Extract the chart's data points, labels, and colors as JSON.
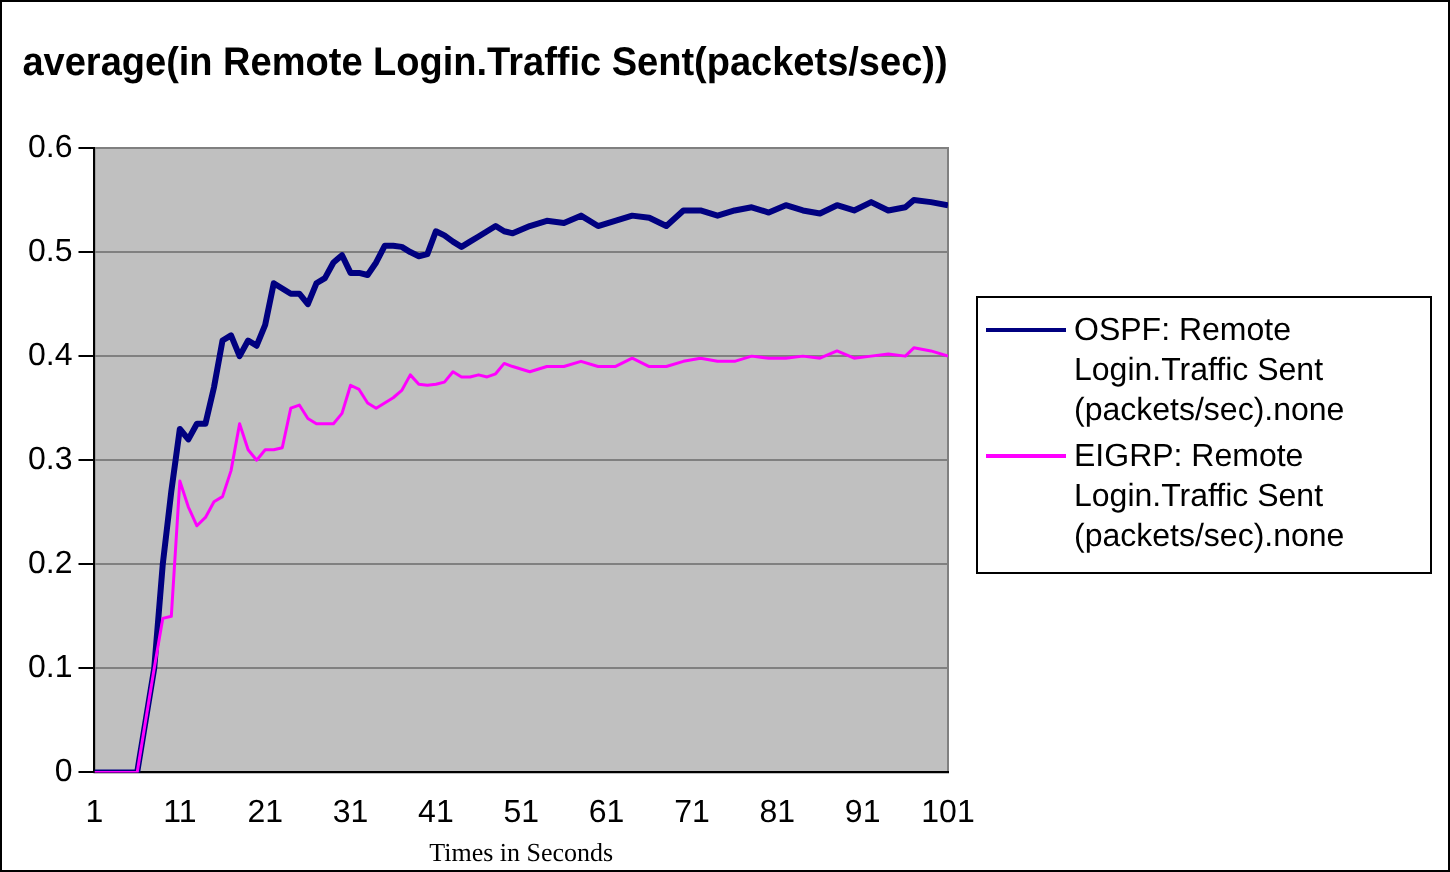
{
  "chart_data": {
    "type": "line",
    "title": "average(in Remote Login.Traffic Sent(packets/sec))",
    "xlabel": "Times in Seconds",
    "xlim": [
      1,
      101
    ],
    "xticks": [
      1,
      11,
      21,
      31,
      41,
      51,
      61,
      71,
      81,
      91,
      101
    ],
    "ylim": [
      0,
      0.6
    ],
    "yticks": [
      0,
      0.1,
      0.2,
      0.3,
      0.4,
      0.5,
      0.6
    ],
    "grid": "y",
    "legend": "right",
    "marker": "none",
    "line_style": "solid",
    "x": [
      1,
      2,
      3,
      4,
      5,
      6,
      7,
      8,
      9,
      10,
      11,
      12,
      13,
      14,
      15,
      16,
      17,
      18,
      19,
      20,
      21,
      22,
      23,
      24,
      25,
      26,
      27,
      28,
      29,
      30,
      31,
      32,
      33,
      34,
      35,
      36,
      37,
      38,
      39,
      40,
      41,
      42,
      43,
      44,
      45,
      46,
      47,
      48,
      49,
      50,
      52,
      54,
      56,
      58,
      60,
      62,
      64,
      66,
      68,
      70,
      72,
      74,
      76,
      78,
      80,
      82,
      84,
      86,
      88,
      90,
      92,
      94,
      96,
      97,
      99,
      101
    ],
    "series": [
      {
        "name": "OSPF: Remote Login.Traffic Sent (packets/sec).none",
        "color": "#000080",
        "values": [
          0,
          0,
          0,
          0,
          0,
          0,
          0.05,
          0.1,
          0.2,
          0.27,
          0.33,
          0.32,
          0.335,
          0.335,
          0.37,
          0.415,
          0.42,
          0.4,
          0.415,
          0.41,
          0.43,
          0.47,
          0.465,
          0.46,
          0.46,
          0.45,
          0.47,
          0.475,
          0.49,
          0.497,
          0.48,
          0.48,
          0.478,
          0.49,
          0.506,
          0.506,
          0.505,
          0.5,
          0.496,
          0.498,
          0.52,
          0.516,
          0.51,
          0.505,
          0.51,
          0.515,
          0.52,
          0.525,
          0.52,
          0.518,
          0.525,
          0.53,
          0.528,
          0.535,
          0.525,
          0.53,
          0.535,
          0.533,
          0.525,
          0.54,
          0.54,
          0.535,
          0.54,
          0.543,
          0.538,
          0.545,
          0.54,
          0.537,
          0.545,
          0.54,
          0.548,
          0.54,
          0.543,
          0.55,
          0.548,
          0.545
        ]
      },
      {
        "name": "EIGRP: Remote Login.Traffic Sent (packets/sec).none",
        "color": "#ff00ff",
        "values": [
          0,
          0,
          0,
          0,
          0,
          0,
          0.05,
          0.1,
          0.148,
          0.15,
          0.28,
          0.255,
          0.237,
          0.245,
          0.26,
          0.265,
          0.29,
          0.335,
          0.31,
          0.3,
          0.31,
          0.31,
          0.312,
          0.35,
          0.353,
          0.34,
          0.335,
          0.335,
          0.335,
          0.345,
          0.372,
          0.368,
          0.355,
          0.35,
          0.355,
          0.36,
          0.367,
          0.382,
          0.373,
          0.372,
          0.373,
          0.375,
          0.385,
          0.38,
          0.38,
          0.382,
          0.38,
          0.383,
          0.393,
          0.39,
          0.385,
          0.39,
          0.39,
          0.395,
          0.39,
          0.39,
          0.398,
          0.39,
          0.39,
          0.395,
          0.398,
          0.395,
          0.395,
          0.4,
          0.398,
          0.398,
          0.4,
          0.398,
          0.405,
          0.398,
          0.4,
          0.402,
          0.4,
          0.408,
          0.405,
          0.4
        ]
      }
    ]
  }
}
